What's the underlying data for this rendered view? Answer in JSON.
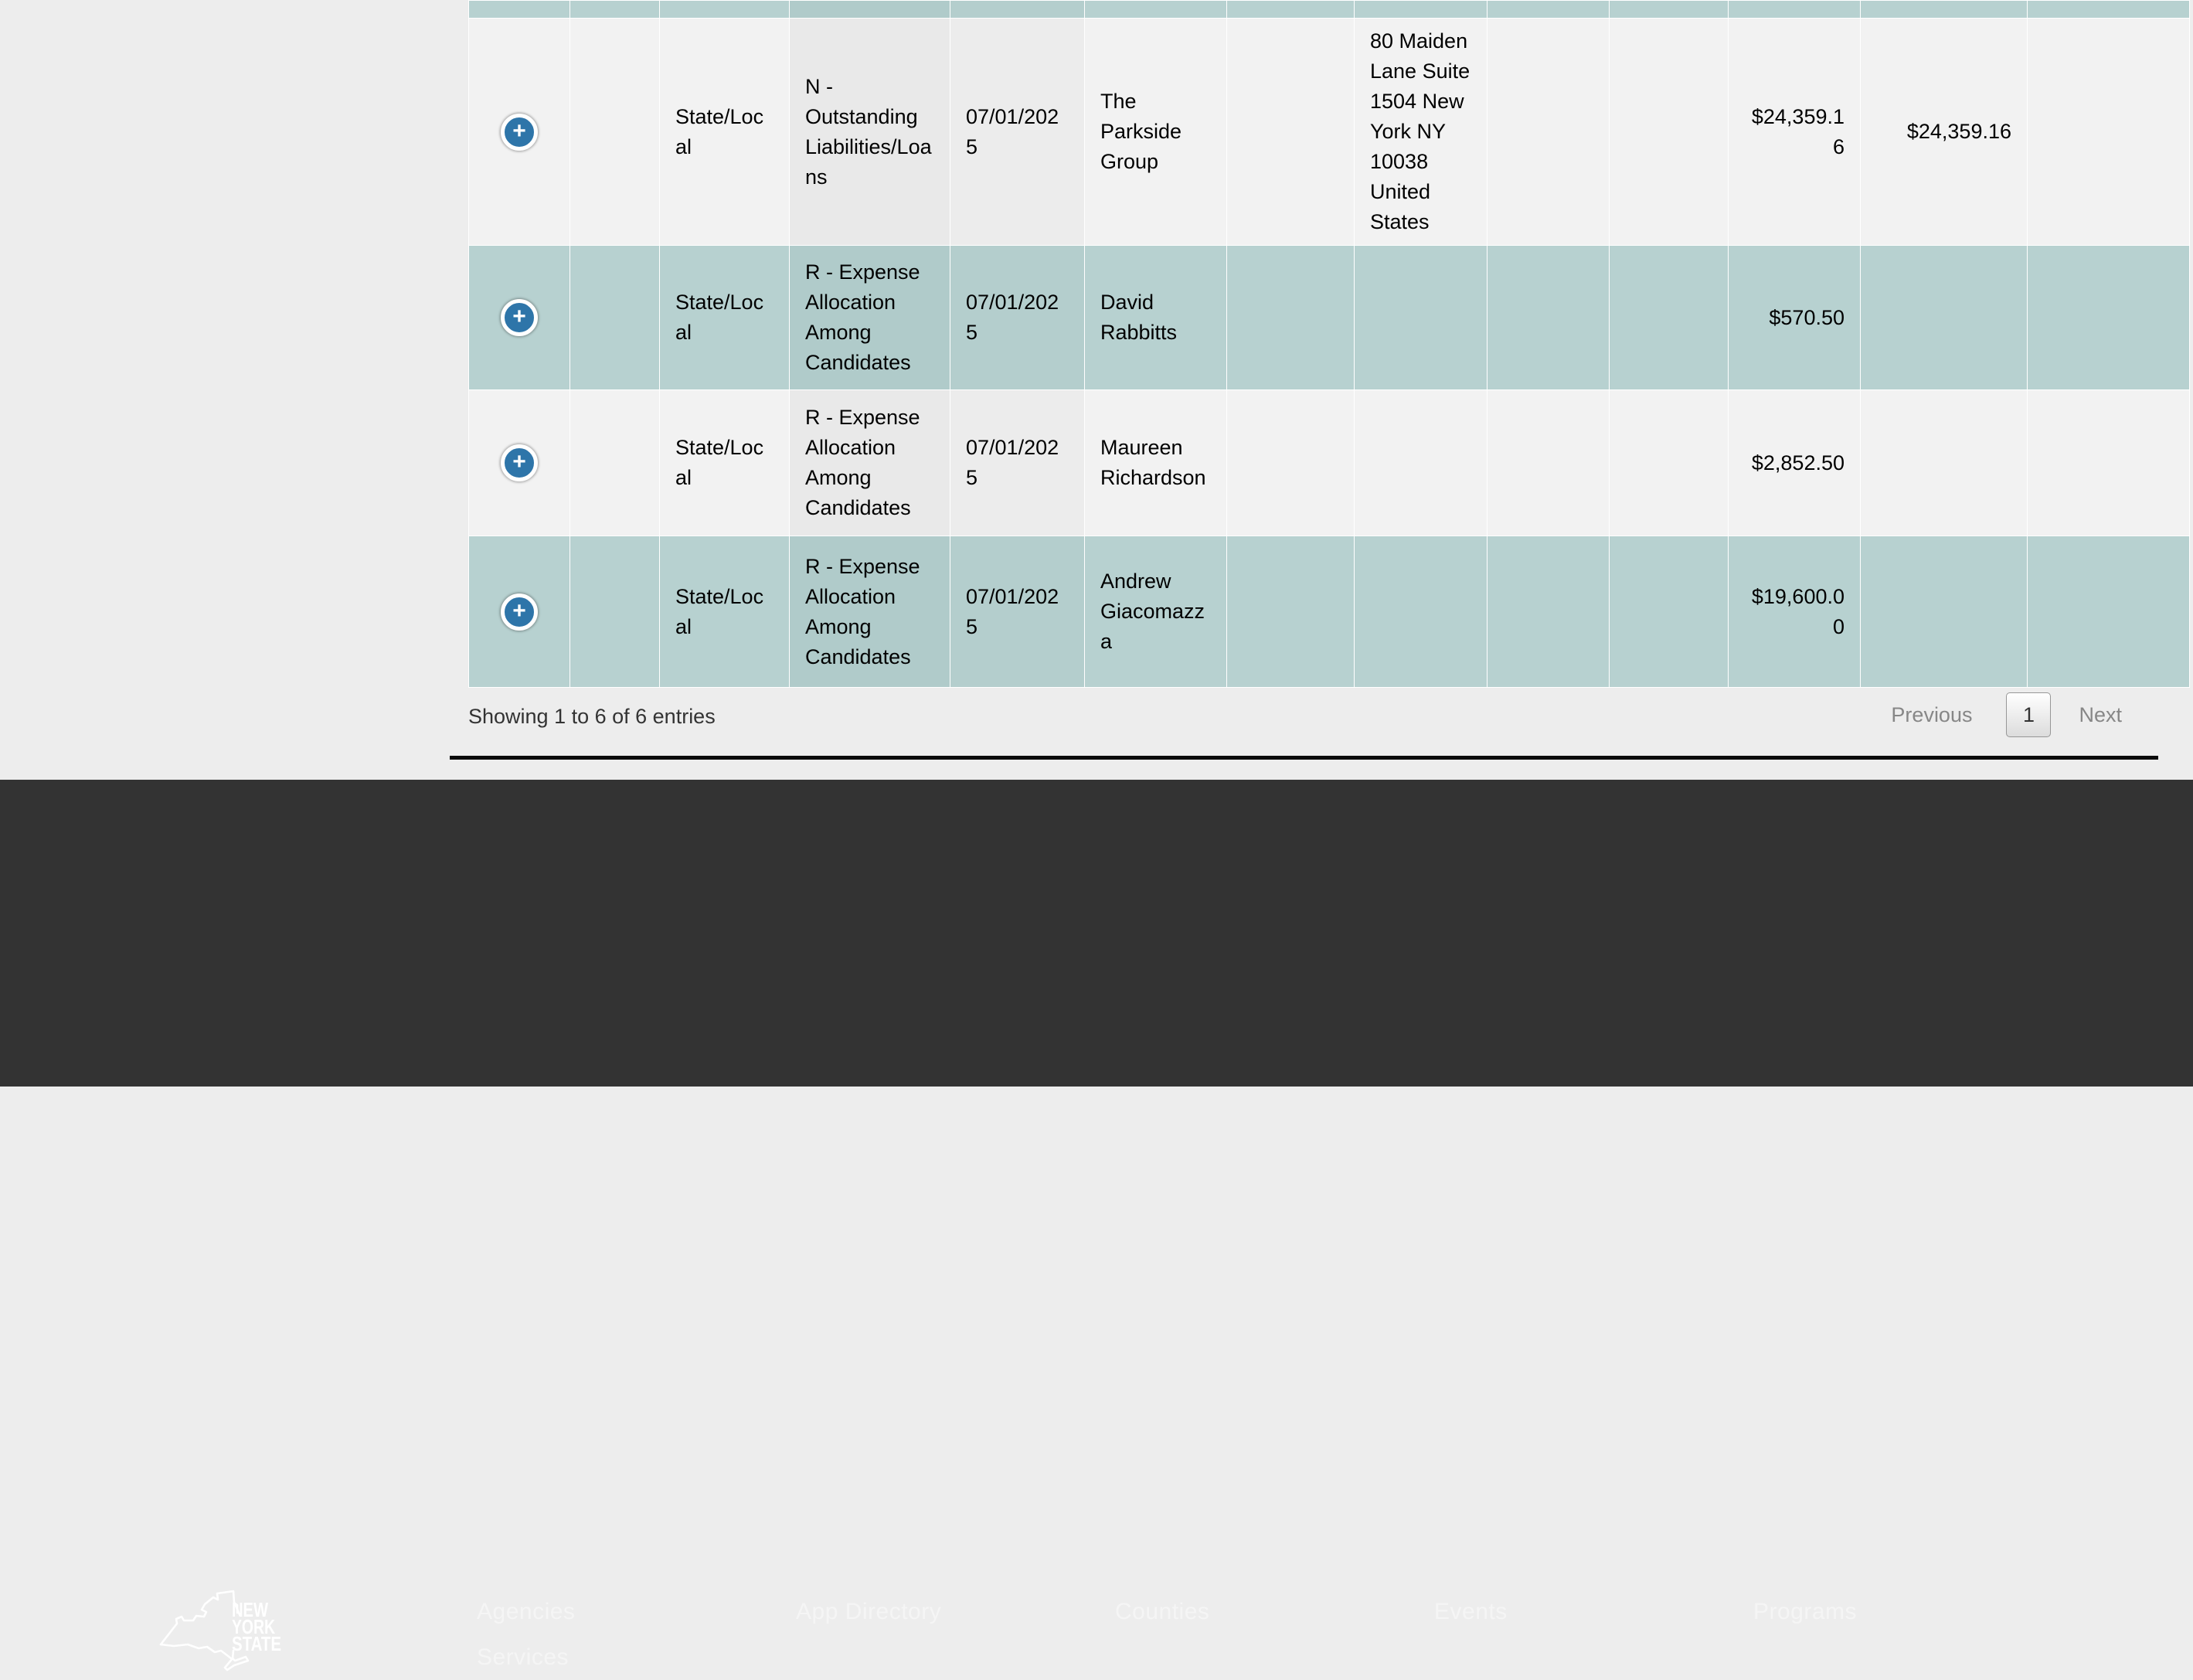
{
  "table": {
    "expand_symbol": "+",
    "info": "Showing 1 to 6 of 6 entries",
    "rows": [
      {
        "variant": "teal",
        "partial": true,
        "cells": {
          "schedule": "",
          "transaction_type": "",
          "date": "",
          "name": "",
          "address": "",
          "amount": "",
          "balance": ""
        }
      },
      {
        "variant": "light",
        "partial": false,
        "cells": {
          "schedule": "State/Local",
          "transaction_type": "N - Outstanding Liabilities/Loans",
          "date": "07/01/2025",
          "name": "The Parkside Group",
          "address": "80 Maiden Lane Suite 1504 New York NY 10038 United States",
          "amount": "$24,359.16",
          "balance": "$24,359.16"
        }
      },
      {
        "variant": "teal",
        "partial": false,
        "cells": {
          "schedule": "State/Local",
          "transaction_type": "R - Expense Allocation Among Candidates",
          "date": "07/01/2025",
          "name": "David Rabbitts",
          "address": "",
          "amount": "$570.50",
          "balance": ""
        }
      },
      {
        "variant": "light",
        "partial": false,
        "cells": {
          "schedule": "State/Local",
          "transaction_type": "R - Expense Allocation Among Candidates",
          "date": "07/01/2025",
          "name": "Maureen Richardson",
          "address": "",
          "amount": "$2,852.50",
          "balance": ""
        }
      },
      {
        "variant": "teal",
        "partial": false,
        "cells": {
          "schedule": "State/Local",
          "transaction_type": "R - Expense Allocation Among Candidates",
          "date": "07/01/2025",
          "name": "Andrew Giacomazza",
          "address": "",
          "amount": "$19,600.00",
          "balance": ""
        }
      }
    ]
  },
  "pagination": {
    "previous": "Previous",
    "page": "1",
    "next": "Next"
  },
  "footer": {
    "logo_lines": [
      "NEW",
      "YORK",
      "STATE"
    ],
    "links": [
      "Agencies",
      "App Directory",
      "Counties",
      "Events",
      "Programs",
      "Services"
    ]
  },
  "colors": {
    "row_teal": "#b7d1d0",
    "row_teal_sorted": "#b0cbca",
    "row_light": "#f2f2f2",
    "row_light_sorted": "#e9e9e9",
    "expand_blue": "#2e75a9",
    "footer_bg": "#333333",
    "page_bg": "#ededed"
  }
}
